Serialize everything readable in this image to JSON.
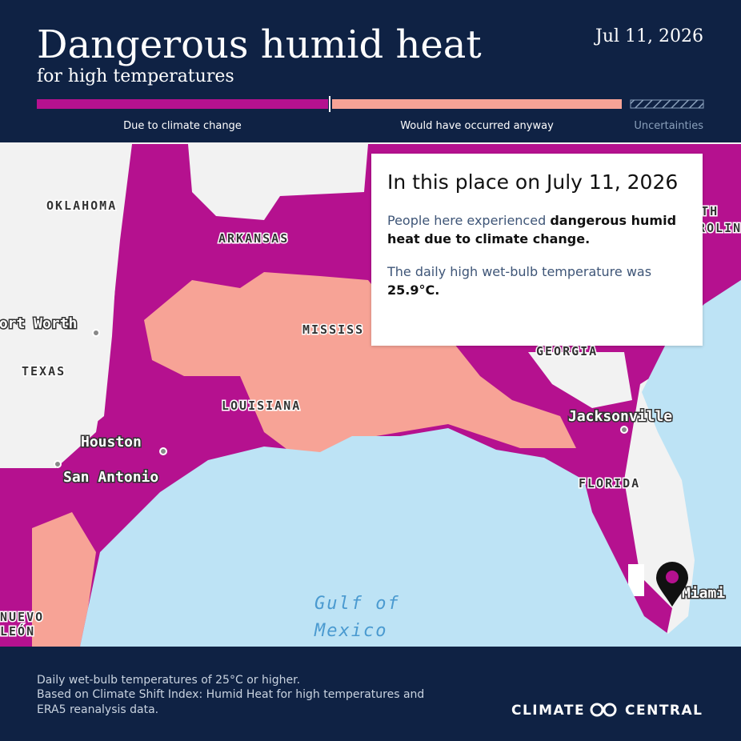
{
  "header": {
    "title": "Dangerous humid heat",
    "subtitle": "for high temperatures",
    "date": "Jul 11, 2026"
  },
  "legend": {
    "items": [
      "Due to climate change",
      "Would have occurred anyway",
      "Uncertainties"
    ]
  },
  "map": {
    "labels": [
      "OKLAHOMA",
      "ARKANSAS",
      "MISSISS",
      "NORTH",
      "CAROLINA",
      "GEORGIA",
      "TEXAS",
      "LOUISIANA",
      "FLORIDA",
      "Fort Worth",
      "Houston",
      "San Antonio",
      "Jacksonville",
      "Miami",
      "NUEVO",
      "LEÓN",
      "Gulf of",
      "Mexico"
    ]
  },
  "popup": {
    "heading": "In this place on July 11, 2026",
    "line1": "People here experienced ",
    "line1_bold": "dangerous humid heat due to climate change.",
    "line2": "The daily high wet-bulb temperature was ",
    "line2_bold": "25.9°C."
  },
  "footer": {
    "lines": [
      "Daily wet-bulb temperatures of 25°C or higher.",
      "Based on Climate Shift Index: Humid Heat for high temperatures and",
      "ERA5 reanalysis data."
    ],
    "logo_left": "CLIMATE",
    "logo_right": "CENTRAL"
  }
}
